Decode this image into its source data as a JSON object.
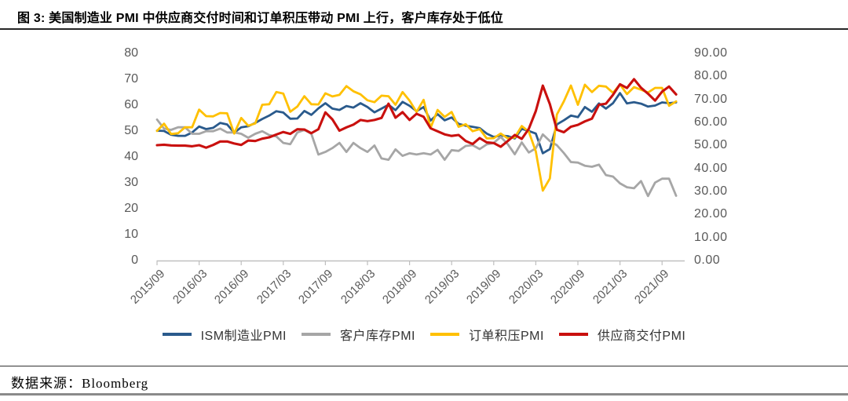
{
  "title": "图 3: 美国制造业 PMI 中供应商交付时间和订单积压带动 PMI 上行，客户库存处于低位",
  "source": "数据来源：Bloomberg",
  "chart_data": {
    "type": "line",
    "grid": false,
    "legend_position": "bottom",
    "left_axis": {
      "min": 0,
      "max": 80,
      "tick_labels": [
        "80",
        "70",
        "60",
        "50",
        "40",
        "30",
        "20",
        "10",
        "0"
      ]
    },
    "right_axis": {
      "min": 0,
      "max": 90,
      "tick_labels": [
        "90.00",
        "80.00",
        "70.00",
        "60.00",
        "50.00",
        "40.00",
        "30.00",
        "20.00",
        "10.00",
        "0.00"
      ]
    },
    "x_tick_labels": [
      "2015/09",
      "2016/03",
      "2016/09",
      "2017/03",
      "2017/09",
      "2018/03",
      "2018/09",
      "2019/03",
      "2019/09",
      "2020/03",
      "2020/09",
      "2021/03",
      "2021/09"
    ],
    "months": [
      "2015/09",
      "2015/10",
      "2015/11",
      "2015/12",
      "2016/01",
      "2016/02",
      "2016/03",
      "2016/04",
      "2016/05",
      "2016/06",
      "2016/07",
      "2016/08",
      "2016/09",
      "2016/10",
      "2016/11",
      "2016/12",
      "2017/01",
      "2017/02",
      "2017/03",
      "2017/04",
      "2017/05",
      "2017/06",
      "2017/07",
      "2017/08",
      "2017/09",
      "2017/10",
      "2017/11",
      "2017/12",
      "2018/01",
      "2018/02",
      "2018/03",
      "2018/04",
      "2018/05",
      "2018/06",
      "2018/07",
      "2018/08",
      "2018/09",
      "2018/10",
      "2018/11",
      "2018/12",
      "2019/01",
      "2019/02",
      "2019/03",
      "2019/04",
      "2019/05",
      "2019/06",
      "2019/07",
      "2019/08",
      "2019/09",
      "2019/10",
      "2019/11",
      "2019/12",
      "2020/01",
      "2020/02",
      "2020/03",
      "2020/04",
      "2020/05",
      "2020/06",
      "2020/07",
      "2020/08",
      "2020/09",
      "2020/10",
      "2020/11",
      "2020/12",
      "2021/01",
      "2021/02",
      "2021/03",
      "2021/04",
      "2021/05",
      "2021/06",
      "2021/07",
      "2021/08",
      "2021/09",
      "2021/10",
      "2021/11"
    ],
    "series": [
      {
        "name": "ISM制造业PMI",
        "color": "#2A5A8C",
        "axis": "left",
        "values": [
          50.2,
          50.1,
          48.6,
          48.2,
          48.2,
          49.5,
          51.8,
          50.8,
          51.3,
          53.2,
          52.6,
          49.4,
          51.5,
          51.9,
          53.2,
          54.7,
          56.0,
          57.7,
          57.2,
          54.8,
          54.9,
          57.8,
          56.3,
          58.8,
          60.8,
          58.7,
          58.2,
          59.7,
          59.1,
          60.8,
          59.3,
          57.3,
          58.7,
          60.2,
          58.1,
          61.3,
          59.8,
          57.7,
          59.3,
          54.1,
          56.6,
          54.2,
          55.3,
          52.8,
          52.1,
          51.7,
          51.2,
          49.1,
          47.8,
          48.3,
          48.1,
          47.2,
          50.9,
          50.1,
          49.1,
          41.5,
          43.1,
          52.6,
          54.2,
          56.0,
          55.4,
          59.3,
          57.5,
          60.7,
          58.7,
          60.8,
          64.7,
          60.7,
          61.2,
          60.6,
          59.5,
          59.9,
          61.1,
          60.8,
          61.1
        ]
      },
      {
        "name": "客户库存PMI",
        "color": "#A6A6A6",
        "axis": "left",
        "values": [
          54.5,
          51.0,
          50.5,
          51.5,
          51.5,
          49.0,
          49.0,
          50.0,
          50.0,
          51.0,
          49.5,
          49.5,
          49.0,
          47.5,
          49.0,
          50.0,
          48.5,
          48.0,
          45.5,
          45.0,
          49.5,
          50.5,
          49.0,
          41.0,
          42.0,
          43.5,
          45.5,
          42.0,
          45.5,
          43.5,
          42.0,
          44.5,
          39.5,
          39.0,
          43.0,
          40.5,
          41.5,
          41.0,
          41.5,
          41.0,
          42.8,
          39.0,
          42.7,
          42.4,
          44.3,
          44.6,
          43.1,
          44.9,
          45.5,
          47.8,
          45.0,
          41.1,
          45.7,
          41.8,
          43.4,
          48.8,
          46.2,
          44.6,
          41.6,
          38.1,
          37.9,
          36.7,
          36.3,
          37.1,
          33.1,
          32.5,
          29.9,
          28.4,
          28.0,
          30.8,
          25.0,
          30.2,
          31.7,
          31.7,
          25.1
        ]
      },
      {
        "name": "订单积压PMI",
        "color": "#FFC000",
        "axis": "left",
        "values": [
          50.1,
          52.9,
          48.9,
          49.2,
          51.5,
          51.5,
          58.3,
          55.8,
          55.7,
          57.0,
          56.9,
          49.1,
          55.1,
          52.1,
          53.0,
          60.2,
          60.4,
          65.1,
          64.5,
          57.5,
          59.5,
          63.5,
          60.4,
          60.3,
          64.6,
          63.4,
          64.0,
          67.4,
          65.4,
          64.2,
          61.9,
          61.2,
          63.7,
          63.5,
          60.2,
          65.1,
          61.8,
          57.4,
          62.1,
          51.3,
          58.2,
          55.5,
          57.4,
          51.7,
          52.7,
          50.0,
          50.8,
          47.2,
          47.3,
          49.1,
          47.2,
          47.6,
          52.0,
          49.8,
          42.2,
          27.1,
          31.8,
          56.4,
          61.5,
          67.6,
          60.2,
          67.9,
          65.1,
          67.5,
          67.2,
          64.8,
          68.0,
          64.3,
          67.0,
          66.0,
          64.9,
          66.7,
          66.7,
          59.8,
          61.5
        ]
      },
      {
        "name": "供应商交付PMI",
        "color": "#C9100E",
        "axis": "right",
        "values": [
          50.2,
          50.4,
          50.1,
          50.0,
          50.0,
          49.7,
          50.2,
          49.1,
          50.3,
          51.8,
          51.8,
          50.9,
          50.3,
          52.2,
          52.0,
          53.0,
          53.6,
          54.8,
          55.9,
          55.1,
          57.1,
          57.0,
          55.4,
          57.1,
          64.4,
          61.4,
          56.5,
          57.9,
          59.1,
          61.1,
          60.6,
          61.1,
          62.0,
          68.2,
          62.1,
          64.5,
          61.1,
          63.8,
          62.5,
          57.5,
          56.2,
          54.9,
          54.2,
          54.6,
          52.0,
          50.7,
          53.3,
          51.4,
          51.1,
          49.5,
          52.0,
          54.6,
          52.9,
          57.3,
          65.0,
          76.0,
          68.0,
          56.9,
          55.8,
          58.2,
          59.0,
          60.5,
          61.7,
          67.7,
          68.2,
          72.0,
          76.6,
          75.0,
          78.8,
          75.1,
          72.5,
          69.5,
          73.4,
          75.6,
          72.2
        ]
      }
    ]
  }
}
